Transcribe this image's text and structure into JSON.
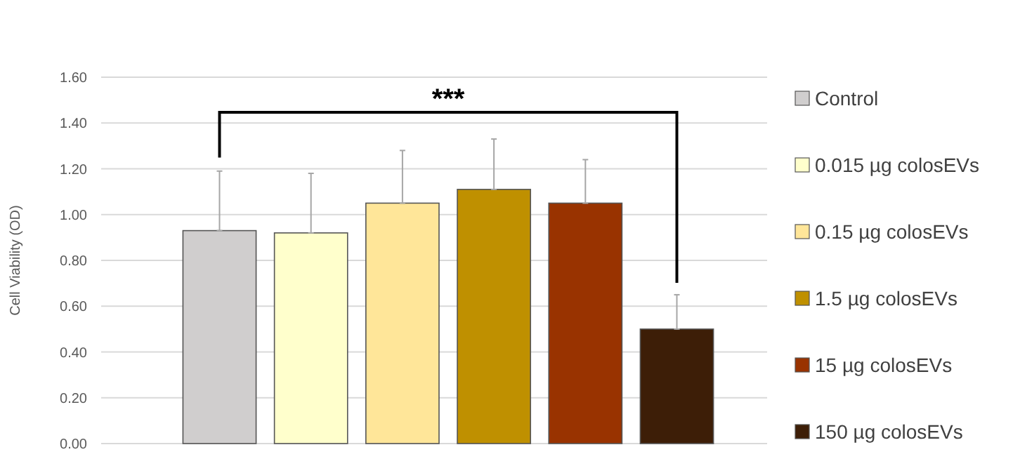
{
  "chart_data": {
    "type": "bar",
    "ylabel": "Cell Viability (OD)",
    "categories": [
      null
    ],
    "series": [
      {
        "name": "Control",
        "color": "#d0cece",
        "values": [
          0.93
        ],
        "errors": [
          [
            0.93,
            1.19
          ]
        ]
      },
      {
        "name": "0.015 µg colosEVs",
        "color": "#ffffcc",
        "values": [
          0.92
        ],
        "errors": [
          [
            0.92,
            1.18
          ]
        ]
      },
      {
        "name": "0.15 µg colosEVs",
        "color": "#ffe699",
        "values": [
          1.05
        ],
        "errors": [
          [
            1.05,
            1.28
          ]
        ]
      },
      {
        "name": "1.5 µg colosEVs",
        "color": "#bf9000",
        "values": [
          1.11
        ],
        "errors": [
          [
            1.11,
            1.33
          ]
        ]
      },
      {
        "name": "15 µg colosEVs",
        "color": "#993300",
        "values": [
          1.05
        ],
        "errors": [
          [
            1.05,
            1.24
          ]
        ]
      },
      {
        "name": "150 µg colosEVs",
        "color": "#3d1e07",
        "values": [
          0.5
        ],
        "errors": [
          [
            0.5,
            0.65
          ]
        ]
      }
    ],
    "ylim": [
      0,
      1.6
    ],
    "yticks": [
      {
        "value": 0,
        "label": "0.00"
      },
      {
        "value": 0.2,
        "label": "0.20"
      },
      {
        "value": 0.4,
        "label": "0.40"
      },
      {
        "value": 0.6,
        "label": "0.60"
      },
      {
        "value": 0.8,
        "label": "0.80"
      },
      {
        "value": 1,
        "label": "1.00"
      },
      {
        "value": 1.2,
        "label": "1.20"
      },
      {
        "value": 1.4,
        "label": "1.40"
      },
      {
        "value": 1.6,
        "label": "1.60"
      }
    ],
    "grid": "y",
    "legend": "right",
    "tick_labels": "y",
    "annotations": [
      "***"
    ]
  }
}
